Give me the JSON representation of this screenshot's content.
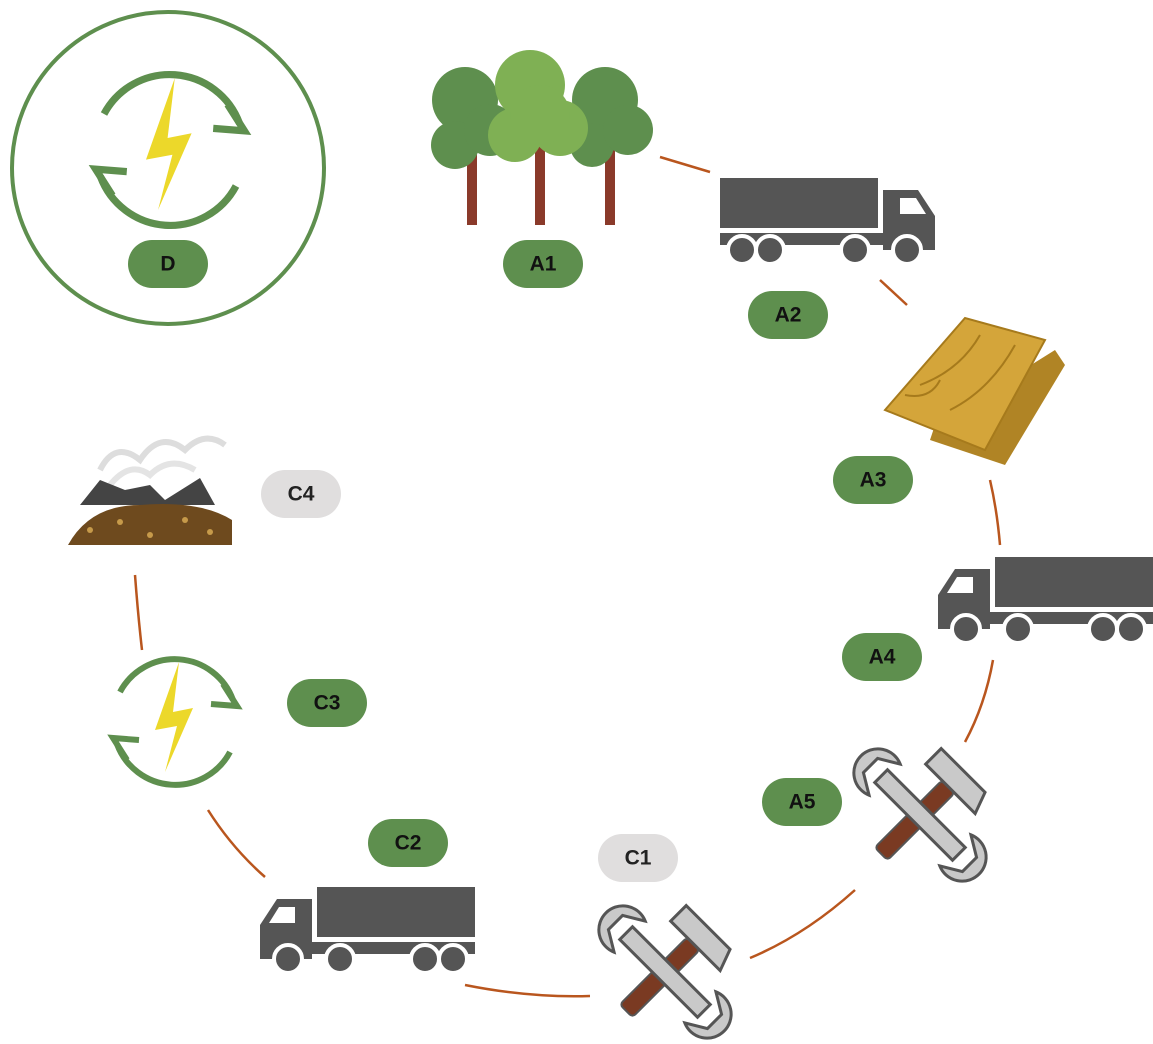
{
  "nodes": [
    {
      "label": "D"
    },
    {
      "label": "A1"
    },
    {
      "label": "A2"
    },
    {
      "label": "A3"
    },
    {
      "label": "A4"
    },
    {
      "label": "A5"
    },
    {
      "label": "C1"
    },
    {
      "label": "C2"
    },
    {
      "label": "C3"
    },
    {
      "label": "C4"
    }
  ]
}
